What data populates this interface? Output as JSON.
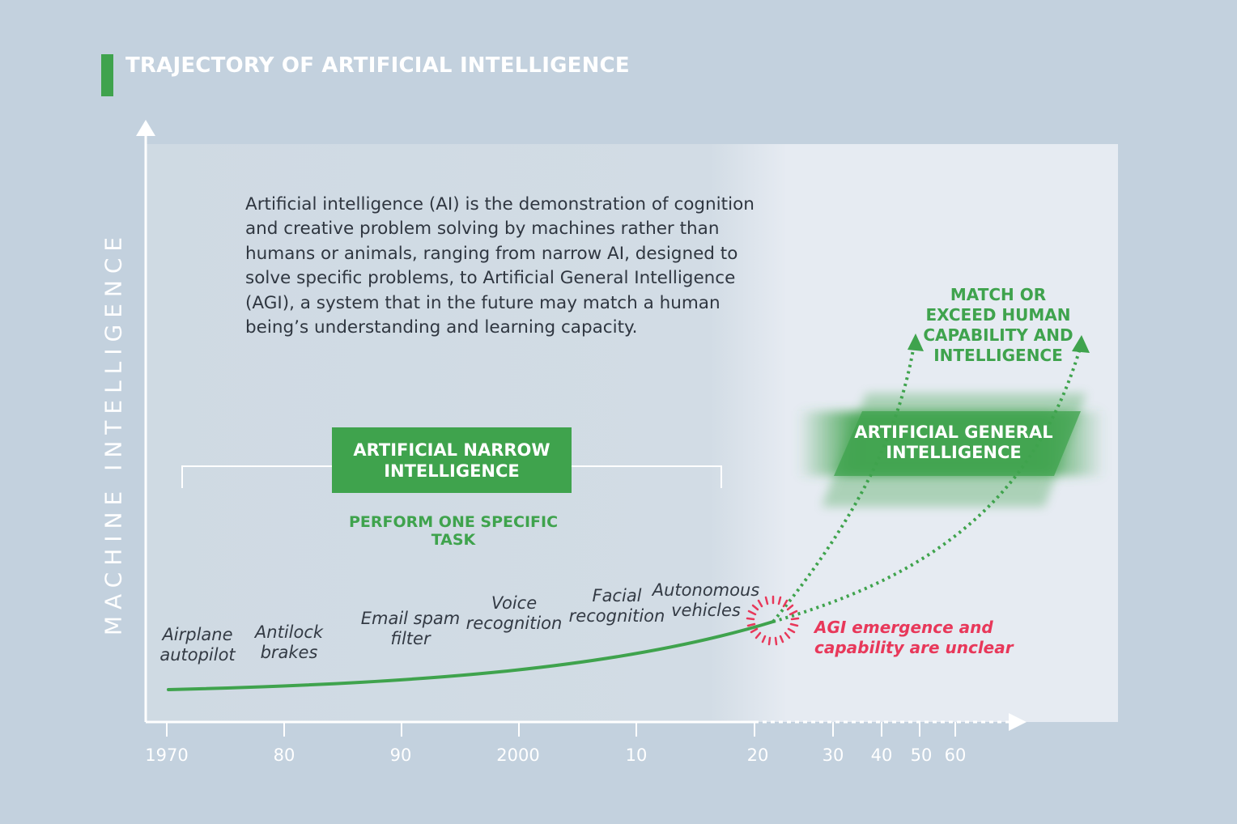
{
  "title": "TRAJECTORY OF ARTIFICIAL INTELLIGENCE",
  "y_axis_label": "MACHINE INTELLIGENCE",
  "intro_text": "Artificial intelligence (AI) is the demonstration of cognition and creative problem solving by machines rather than humans or animals, ranging from narrow AI, designed to solve specific problems, to Artificial General Intelligence (AGI), a system that in the future may match a human being’s understanding and learning capacity.",
  "narrow_ai": {
    "label": "ARTIFICIAL NARROW INTELLIGENCE",
    "subtitle": "PERFORM ONE SPECIFIC TASK"
  },
  "general_ai": {
    "label": "ARTIFICIAL GENERAL INTELLIGENCE",
    "outcome": "MATCH OR EXCEED HUMAN CAPABILITY AND INTELLIGENCE"
  },
  "emergence_note": "AGI emergence and capability are unclear",
  "examples": [
    {
      "line1": "Airplane",
      "line2": "autopilot"
    },
    {
      "line1": "Antilock",
      "line2": "brakes"
    },
    {
      "line1": "Email spam",
      "line2": "filter"
    },
    {
      "line1": "Voice",
      "line2": "recognition"
    },
    {
      "line1": "Facial",
      "line2": "recognition"
    },
    {
      "line1": "Autonomous",
      "line2": "vehicles"
    }
  ],
  "x_ticks": [
    "1970",
    "80",
    "90",
    "2000",
    "10",
    "20",
    "30",
    "40",
    "50",
    "60"
  ],
  "colors": {
    "background": "#c3d1de",
    "accent_green": "#3fa34d",
    "alert_red": "#e8385a",
    "text_dark": "#2f3640"
  }
}
